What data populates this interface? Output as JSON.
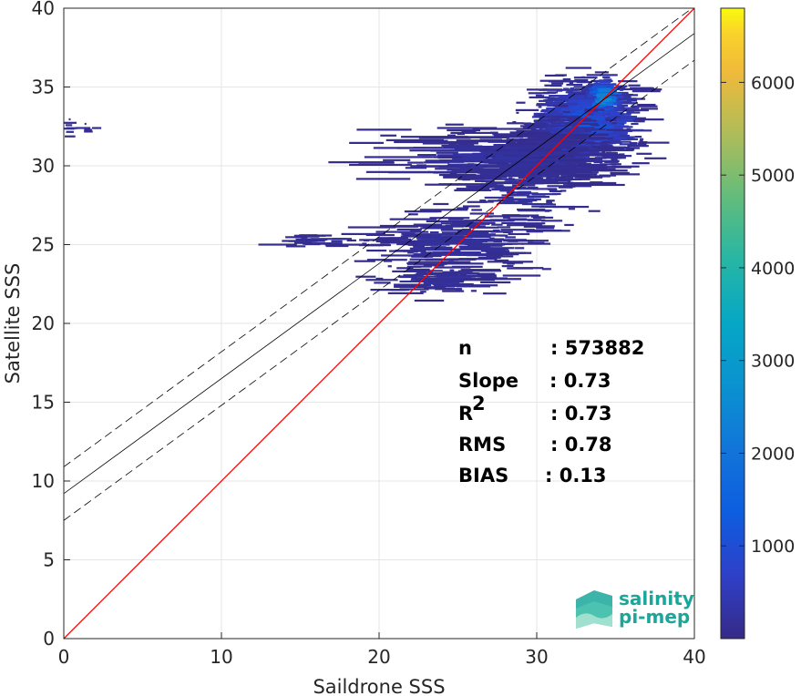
{
  "chart_data": {
    "type": "heatmap",
    "xlabel": "Saildrone SSS",
    "ylabel": "Satellite SSS",
    "xlim": [
      0,
      40
    ],
    "ylim": [
      0,
      40
    ],
    "xticks": [
      "0",
      "10",
      "20",
      "30",
      "40"
    ],
    "yticks": [
      "0",
      "5",
      "10",
      "15",
      "20",
      "25",
      "30",
      "35",
      "40"
    ],
    "grid": true,
    "colormap": "parula",
    "colorbar": {
      "range": [
        0,
        6800
      ],
      "ticks": [
        "1000",
        "2000",
        "3000",
        "4000",
        "5000",
        "6000"
      ],
      "tick_values": [
        1000,
        2000,
        3000,
        4000,
        5000,
        6000
      ]
    },
    "lines": [
      {
        "role": "one-to-one",
        "color": "#ff0000",
        "slope": 1.0,
        "intercept": 0.0
      },
      {
        "role": "fit",
        "color": "#000000",
        "style": "solid",
        "slope": 0.73,
        "intercept": 9.2
      },
      {
        "role": "fit-upper",
        "color": "#000000",
        "style": "dashed",
        "slope": 0.73,
        "intercept": 10.9
      },
      {
        "role": "fit-lower",
        "color": "#000000",
        "style": "dashed",
        "slope": 0.73,
        "intercept": 7.5
      }
    ],
    "stats": [
      {
        "label": "n",
        "value": ": 573882"
      },
      {
        "label": "Slope",
        "value": ": 0.73"
      },
      {
        "label": "R",
        "sup": "2",
        "value": ": 0.73"
      },
      {
        "label": "RMS",
        "value": ": 0.78"
      },
      {
        "label": "BIAS",
        "value": ": 0.13"
      }
    ],
    "density_clusters": [
      {
        "x": 33.2,
        "y": 32.8,
        "sx": 1.6,
        "sy": 1.3,
        "peak": 1400,
        "n": 700
      },
      {
        "x": 34.3,
        "y": 34.3,
        "sx": 0.6,
        "sy": 0.6,
        "peak": 3200,
        "n": 120
      },
      {
        "x": 31.5,
        "y": 31.0,
        "sx": 1.4,
        "sy": 1.2,
        "peak": 700,
        "n": 350
      },
      {
        "x": 28.0,
        "y": 30.5,
        "sx": 3.5,
        "sy": 0.8,
        "peak": 300,
        "n": 260
      },
      {
        "x": 29.0,
        "y": 28.5,
        "sx": 2.0,
        "sy": 1.6,
        "peak": 250,
        "n": 160
      },
      {
        "x": 25.0,
        "y": 25.2,
        "sx": 2.5,
        "sy": 1.0,
        "peak": 220,
        "n": 200
      },
      {
        "x": 23.5,
        "y": 22.8,
        "sx": 2.0,
        "sy": 0.5,
        "peak": 200,
        "n": 90
      },
      {
        "x": 17.0,
        "y": 25.3,
        "sx": 2.0,
        "sy": 0.2,
        "peak": 150,
        "n": 30
      },
      {
        "x": 1.0,
        "y": 32.4,
        "sx": 0.8,
        "sy": 0.3,
        "peak": 150,
        "n": 14
      }
    ]
  },
  "logo": {
    "line1": "salinity",
    "line2": "pi-mep",
    "color": "#1aa79a"
  }
}
